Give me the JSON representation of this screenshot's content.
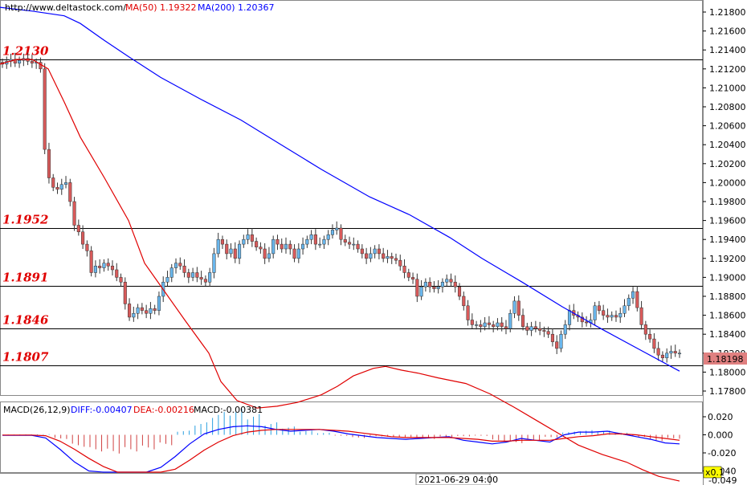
{
  "header": {
    "site": "http://www.deltastock.com/",
    "ma50_label": "MA(50)",
    "ma50_value": "1.19322",
    "ma200_label": "MA(200)",
    "ma200_value": "1.20367",
    "ma50_color": "#e00000",
    "ma200_color": "#0000ff"
  },
  "macd_header": {
    "title": "MACD(26,12,9)",
    "diff": "DIFF:-0.00407",
    "dea": "DEA:-0.00216",
    "macd": "MACD:-0.00381"
  },
  "price_badge": "1.18198",
  "zoom_badge": "x0.1",
  "time_label": "2021-06-29 04:00",
  "macd_bottom_tick": "-0.049",
  "colors": {
    "up": "#69b6ec",
    "down": "#d85a5a",
    "level": "#e00000",
    "badge": "#e08080",
    "zoom": "#ffff00"
  },
  "chart_data": [
    {
      "type": "candlestick",
      "ylim": [
        1.177,
        1.219
      ],
      "y_ticks": [
        "1.21800",
        "1.21600",
        "1.21400",
        "1.21200",
        "1.21000",
        "1.20800",
        "1.20600",
        "1.20400",
        "1.20200",
        "1.20000",
        "1.19800",
        "1.19600",
        "1.19400",
        "1.19200",
        "1.19000",
        "1.18800",
        "1.18600",
        "1.18400",
        "1.18200",
        "1.18000",
        "1.17800"
      ],
      "levels": [
        {
          "label": "1.2130",
          "value": 1.213
        },
        {
          "label": "1.1952",
          "value": 1.1952
        },
        {
          "label": "1.1891",
          "value": 1.1891
        },
        {
          "label": "1.1846",
          "value": 1.1846
        },
        {
          "label": "1.1807",
          "value": 1.1807
        }
      ],
      "close_series": [
        1.2125,
        1.2128,
        1.213,
        1.2126,
        1.2129,
        1.2131,
        1.2128,
        1.2126,
        1.2127,
        1.212,
        1.2035,
        1.2005,
        1.1995,
        1.1993,
        1.1998,
        1.2,
        1.198,
        1.1955,
        1.1948,
        1.1935,
        1.1928,
        1.1905,
        1.1912,
        1.191,
        1.1915,
        1.1912,
        1.1908,
        1.19,
        1.1895,
        1.1872,
        1.1858,
        1.1862,
        1.1868,
        1.1865,
        1.1862,
        1.1867,
        1.1865,
        1.188,
        1.1895,
        1.19,
        1.191,
        1.1915,
        1.1912,
        1.1905,
        1.19,
        1.1905,
        1.19,
        1.1898,
        1.1895,
        1.1905,
        1.1925,
        1.194,
        1.1935,
        1.1925,
        1.193,
        1.192,
        1.1935,
        1.194,
        1.1945,
        1.1938,
        1.1932,
        1.193,
        1.192,
        1.1925,
        1.194,
        1.1935,
        1.193,
        1.1935,
        1.193,
        1.192,
        1.193,
        1.1935,
        1.194,
        1.1945,
        1.1935,
        1.1935,
        1.194,
        1.1945,
        1.195,
        1.1952,
        1.194,
        1.1937,
        1.1935,
        1.1935,
        1.193,
        1.1925,
        1.192,
        1.1925,
        1.193,
        1.1925,
        1.192,
        1.1922,
        1.192,
        1.1918,
        1.1912,
        1.1905,
        1.19,
        1.1898,
        1.188,
        1.189,
        1.1895,
        1.189,
        1.1888,
        1.189,
        1.1895,
        1.1898,
        1.1895,
        1.189,
        1.188,
        1.187,
        1.1855,
        1.185,
        1.185,
        1.1848,
        1.1852,
        1.185,
        1.1848,
        1.1852,
        1.1848,
        1.1846,
        1.1862,
        1.1875,
        1.186,
        1.1848,
        1.1844,
        1.1848,
        1.1846,
        1.1844,
        1.1843,
        1.184,
        1.1832,
        1.1825,
        1.184,
        1.185,
        1.1865,
        1.186,
        1.1858,
        1.1853,
        1.1852,
        1.1855,
        1.187,
        1.1865,
        1.186,
        1.1858,
        1.186,
        1.1858,
        1.1862,
        1.187,
        1.1878,
        1.1885,
        1.1868,
        1.185,
        1.184,
        1.1835,
        1.1825,
        1.1818,
        1.1815,
        1.182,
        1.1822,
        1.182,
        1.182
      ]
    },
    {
      "type": "line",
      "series": [
        {
          "name": "MA(50)",
          "color": "#e00000",
          "points": [
            [
              0,
              1.2125
            ],
            [
              20,
              1.213
            ],
            [
              40,
              1.213
            ],
            [
              60,
              1.212
            ],
            [
              80,
              1.2085
            ],
            [
              100,
              1.2048
            ],
            [
              130,
              1.2005
            ],
            [
              160,
              1.196
            ],
            [
              180,
              1.1915
            ],
            [
              205,
              1.1885
            ],
            [
              230,
              1.1855
            ],
            [
              260,
              1.182
            ],
            [
              275,
              1.179
            ],
            [
              295,
              1.177
            ],
            [
              320,
              1.1762
            ],
            [
              345,
              1.1764
            ],
            [
              370,
              1.1768
            ],
            [
              400,
              1.1776
            ],
            [
              420,
              1.1785
            ],
            [
              440,
              1.1796
            ],
            [
              465,
              1.1804
            ],
            [
              480,
              1.1806
            ],
            [
              500,
              1.1802
            ],
            [
              520,
              1.1799
            ],
            [
              545,
              1.1794
            ],
            [
              580,
              1.1788
            ],
            [
              610,
              1.1777
            ],
            [
              640,
              1.1763
            ],
            [
              670,
              1.1748
            ],
            [
              700,
              1.1733
            ],
            [
              720,
              1.1723
            ],
            [
              750,
              1.1713
            ],
            [
              780,
              1.1705
            ],
            [
              800,
              1.1697
            ],
            [
              820,
              1.169
            ],
            [
              846,
              1.1685
            ]
          ]
        },
        {
          "name": "MA(200)",
          "color": "#0000ff",
          "points": [
            [
              0,
              1.2185
            ],
            [
              40,
              1.2181
            ],
            [
              80,
              1.2176
            ],
            [
              100,
              1.2168
            ],
            [
              130,
              1.215
            ],
            [
              160,
              1.2133
            ],
            [
              200,
              1.2111
            ],
            [
              250,
              1.2088
            ],
            [
              300,
              1.2066
            ],
            [
              350,
              1.204
            ],
            [
              400,
              1.2014
            ],
            [
              460,
              1.1985
            ],
            [
              510,
              1.1966
            ],
            [
              560,
              1.1942
            ],
            [
              600,
              1.192
            ],
            [
              650,
              1.1895
            ],
            [
              700,
              1.1869
            ],
            [
              750,
              1.1845
            ],
            [
              800,
              1.1822
            ],
            [
              846,
              1.1801
            ]
          ]
        }
      ]
    },
    {
      "type": "bar",
      "name": "MACD(26,12,9)",
      "ylim": [
        -0.049,
        0.03
      ],
      "y_ticks": [
        "0.020",
        "0.000",
        "-0.020",
        "-0.040"
      ],
      "diff": [
        -0.0005,
        -0.0005,
        -0.0004,
        -0.0035,
        -0.016,
        -0.03,
        -0.04,
        -0.047,
        -0.049,
        -0.048,
        -0.044,
        -0.036,
        -0.024,
        -0.01,
        0.001,
        0.006,
        0.009,
        0.01,
        0.009,
        0.006,
        0.004,
        0.005,
        0.006,
        0.004,
        0.001,
        -0.001,
        -0.003,
        -0.004,
        -0.005,
        -0.004,
        -0.003,
        -0.002,
        -0.006,
        -0.008,
        -0.01,
        -0.008,
        -0.004,
        -0.006,
        -0.008,
        0.0,
        0.003,
        0.003,
        0.004,
        0.001,
        -0.002,
        -0.005,
        -0.009,
        -0.01
      ],
      "dea": [
        -0.0003,
        -0.0003,
        -0.0003,
        -0.001,
        -0.007,
        -0.016,
        -0.026,
        -0.035,
        -0.042,
        -0.046,
        -0.047,
        -0.045,
        -0.038,
        -0.028,
        -0.017,
        -0.008,
        -0.001,
        0.003,
        0.005,
        0.006,
        0.006,
        0.006,
        0.006,
        0.005,
        0.004,
        0.002,
        0.0,
        -0.002,
        -0.003,
        -0.003,
        -0.003,
        -0.003,
        -0.004,
        -0.005,
        -0.007,
        -0.007,
        -0.006,
        -0.006,
        -0.006,
        -0.004,
        -0.002,
        -0.001,
        0.001,
        0.001,
        0.0,
        -0.002,
        -0.004,
        -0.006
      ],
      "macd": [
        0.0002,
        0.0004,
        0.0006,
        -0.004,
        -0.0115,
        -0.016,
        -0.018,
        -0.016,
        -0.014,
        -0.01,
        0.004,
        0.012,
        0.022,
        0.025,
        0.02,
        0.012,
        0.008,
        0.004,
        0.002,
        -0.001,
        -0.003,
        -0.0015,
        -0.0025,
        -0.003,
        -0.004,
        -0.002,
        -0.0015,
        -0.001,
        -0.006,
        -0.008,
        -0.0055,
        -0.0025,
        0.003,
        0.0045,
        0.004,
        0.002,
        -0.002,
        -0.006,
        -0.0038
      ]
    }
  ]
}
